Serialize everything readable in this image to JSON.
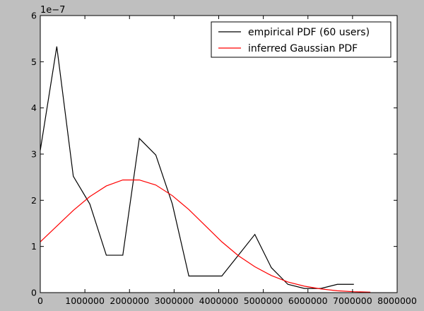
{
  "chart_data": {
    "type": "line",
    "title": "",
    "xlabel": "",
    "ylabel": "",
    "xlim": [
      0,
      8000000
    ],
    "ylim": [
      0,
      6
    ],
    "y_offset_label": "1e−7",
    "xticks": [
      0,
      1000000,
      2000000,
      3000000,
      4000000,
      5000000,
      6000000,
      7000000,
      8000000
    ],
    "xtick_labels": [
      "0",
      "1000000",
      "2000000",
      "3000000",
      "4000000",
      "5000000",
      "6000000",
      "7000000",
      "8000000"
    ],
    "yticks": [
      0,
      1,
      2,
      3,
      4,
      5,
      6
    ],
    "ytick_labels": [
      "0",
      "1",
      "2",
      "3",
      "4",
      "5",
      "6"
    ],
    "grid": false,
    "legend_position": "top-right",
    "series": [
      {
        "name": "empirical PDF (60 users)",
        "color": "#000000",
        "x": [
          0,
          370000,
          740000,
          1110000,
          1480000,
          1850000,
          2220000,
          2590000,
          2960000,
          3330000,
          3700000,
          4070000,
          4440000,
          4810000,
          5180000,
          5550000,
          5920000,
          6290000,
          6660000,
          7030000
        ],
        "y": [
          3.08,
          5.33,
          2.52,
          1.92,
          0.81,
          0.81,
          3.34,
          2.98,
          1.92,
          0.36,
          0.36,
          0.36,
          0.81,
          1.26,
          0.54,
          0.18,
          0.09,
          0.09,
          0.18,
          0.18
        ]
      },
      {
        "name": "inferred Gaussian PDF",
        "color": "#ff0000",
        "x": [
          0,
          370000,
          740000,
          1110000,
          1480000,
          1850000,
          2220000,
          2590000,
          2960000,
          3330000,
          3700000,
          4070000,
          4440000,
          4810000,
          5180000,
          5550000,
          5920000,
          6290000,
          6660000,
          7030000,
          7400000
        ],
        "y": [
          1.1,
          1.44,
          1.78,
          2.08,
          2.31,
          2.44,
          2.44,
          2.33,
          2.1,
          1.8,
          1.45,
          1.1,
          0.8,
          0.56,
          0.37,
          0.23,
          0.14,
          0.08,
          0.04,
          0.02,
          0.01
        ]
      }
    ]
  }
}
